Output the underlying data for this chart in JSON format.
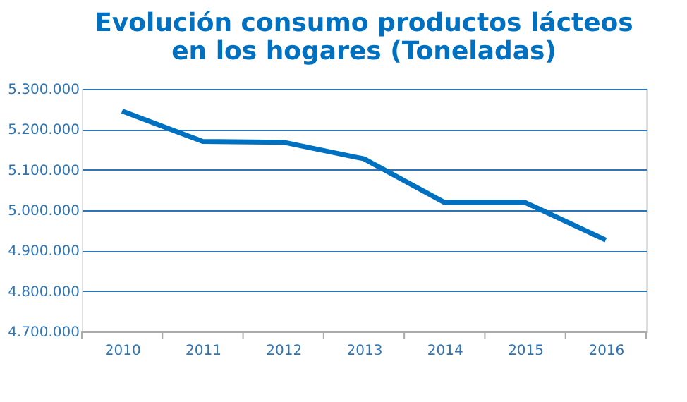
{
  "chart_data": {
    "type": "line",
    "title": [
      "Evolución consumo productos lácteos",
      "en los hogares (Toneladas)"
    ],
    "categories": [
      "2010",
      "2011",
      "2012",
      "2013",
      "2014",
      "2015",
      "2016"
    ],
    "series": [
      {
        "color": "#0070c0",
        "values": [
          5245000,
          5170000,
          5168000,
          5127000,
          5019000,
          5019000,
          4926000
        ]
      }
    ],
    "ylim": [
      4700000,
      5300000
    ],
    "yticks": [
      {
        "value": 4700000,
        "label": "4.700.000"
      },
      {
        "value": 4800000,
        "label": "4.800.000"
      },
      {
        "value": 4900000,
        "label": "4.900.000"
      },
      {
        "value": 5000000,
        "label": "5.000.000"
      },
      {
        "value": 5100000,
        "label": "5.100.000"
      },
      {
        "value": 5200000,
        "label": "5.200.000"
      },
      {
        "value": 5300000,
        "label": "5.300.000"
      }
    ],
    "grid": "y",
    "legend": false,
    "marker": "none",
    "line_style": "solid"
  }
}
